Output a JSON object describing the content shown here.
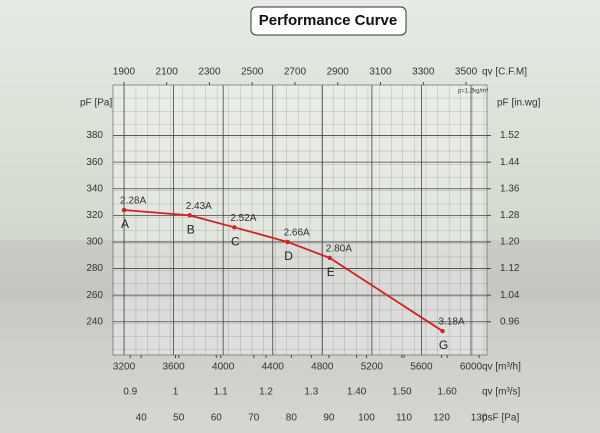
{
  "chart_data": {
    "type": "line",
    "title": "Performance Curve",
    "annotation": "p=1.2kg/m³",
    "ylabel": "pF [Pa]",
    "ylim": [
      215,
      418
    ],
    "yticks": [
      240,
      260,
      280,
      300,
      320,
      340,
      360,
      380
    ],
    "y2label": "pF [in.wg]",
    "y2lim": [
      0.86,
      1.672
    ],
    "y2ticks": [
      0.96,
      1.04,
      1.12,
      {
        "value": 1.2,
        "label": "1.20"
      },
      1.28,
      1.36,
      1.44,
      1.52
    ],
    "xlabel": "qv [m³/h]",
    "xlim": [
      3111,
      6129
    ],
    "xticks": [
      3200,
      3600,
      4000,
      4400,
      4800,
      5200,
      5600,
      6000
    ],
    "secondary_x_axes": [
      {
        "position": "top",
        "label": "qv [C.F.M]",
        "lim": [
          1849,
          3598
        ],
        "ticks": [
          1900,
          2100,
          2300,
          2500,
          2700,
          2900,
          3100,
          3300,
          3500
        ]
      },
      {
        "position": "bottom",
        "label": "qv [m³/s]",
        "lim": [
          0.862,
          1.688
        ],
        "ticks": [
          0.9,
          1,
          1.1,
          1.2,
          1.3,
          {
            "value": 1.4,
            "label": "1.40"
          },
          {
            "value": 1.5,
            "label": "1.50"
          },
          {
            "value": 1.6,
            "label": "1.60"
          }
        ]
      },
      {
        "position": "bottom",
        "label": "psF [Pa]",
        "lim": [
          32.5,
          132.1
        ],
        "ticks": [
          40,
          50,
          60,
          70,
          80,
          90,
          100,
          110,
          120,
          130
        ]
      }
    ],
    "grid": true,
    "x": [
      3200,
      3730,
      4090,
      4520,
      4860,
      5770
    ],
    "series": [
      {
        "color": "#d0202a",
        "values": [
          324,
          320,
          311,
          300,
          288,
          233
        ],
        "point_labels": [
          "A",
          "B",
          "C",
          "D",
          "E",
          "G"
        ],
        "current_labels": [
          "2.28A",
          "2.43A",
          "2.52A",
          "2.66A",
          "2.80A",
          "3.18A"
        ]
      }
    ]
  }
}
